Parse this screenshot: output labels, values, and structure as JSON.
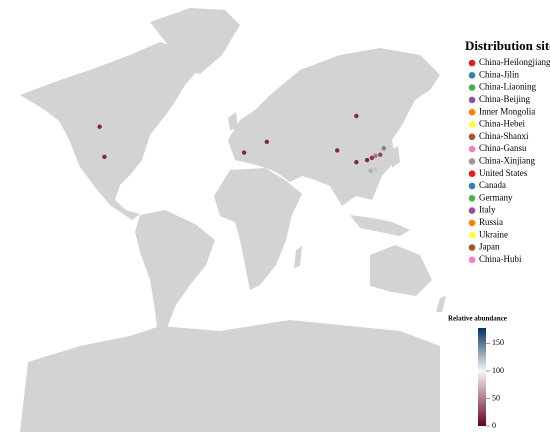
{
  "map": {
    "legend": {
      "title": "Distribution site",
      "items": [
        {
          "name": "China-Heilongjiang",
          "color": "#e41a1c"
        },
        {
          "name": "China-Jilin",
          "color": "#377eb8"
        },
        {
          "name": "China-Liaoning",
          "color": "#4daf4a"
        },
        {
          "name": "China-Beijing",
          "color": "#984ea3"
        },
        {
          "name": "Inner Mongolia",
          "color": "#ff7f00"
        },
        {
          "name": "China-Hebei",
          "color": "#ffff33"
        },
        {
          "name": "China-Shanxi",
          "color": "#a65628"
        },
        {
          "name": "China-Gansu",
          "color": "#f781bf"
        },
        {
          "name": "China-Xinjiang",
          "color": "#999999"
        },
        {
          "name": "United States",
          "color": "#e41a1c"
        },
        {
          "name": "Canada",
          "color": "#377eb8"
        },
        {
          "name": "Germany",
          "color": "#4daf4a"
        },
        {
          "name": "Italy",
          "color": "#984ea3"
        },
        {
          "name": "Russia",
          "color": "#ff7f00"
        },
        {
          "name": "Ukraine",
          "color": "#ffff33"
        },
        {
          "name": "Japan",
          "color": "#a65628"
        },
        {
          "name": "China-Hubi",
          "color": "#f781bf"
        }
      ]
    },
    "colorbar": {
      "title": "Relative abundance",
      "lim": [
        0,
        178
      ],
      "ticks": [
        0,
        50,
        100,
        150
      ],
      "stops": [
        {
          "value": 0,
          "color": "#67001f"
        },
        {
          "value": 100,
          "color": "#f7f7f7"
        },
        {
          "value": 178,
          "color": "#053061"
        }
      ]
    },
    "points": [
      {
        "lon": -105,
        "lat": 55,
        "value": 5
      },
      {
        "lon": -101,
        "lat": 41,
        "value": 5
      },
      {
        "lon": 16,
        "lat": 43,
        "value": 5
      },
      {
        "lon": 35,
        "lat": 48,
        "value": 5
      },
      {
        "lon": 110,
        "lat": 60,
        "value": 5
      },
      {
        "lon": 94,
        "lat": 44,
        "value": 5
      },
      {
        "lon": 110,
        "lat": 38.5,
        "value": 5
      },
      {
        "lon": 119,
        "lat": 39.5,
        "value": 5
      },
      {
        "lon": 123,
        "lat": 40.5,
        "value": 10
      },
      {
        "lon": 126,
        "lat": 41.5,
        "value": 40
      },
      {
        "lon": 133,
        "lat": 45,
        "value": 150
      },
      {
        "lon": 130,
        "lat": 42,
        "value": 20
      },
      {
        "lon": 122,
        "lat": 34.5,
        "value": 130
      },
      {
        "lon": 126,
        "lat": 35,
        "value": 120
      }
    ]
  }
}
